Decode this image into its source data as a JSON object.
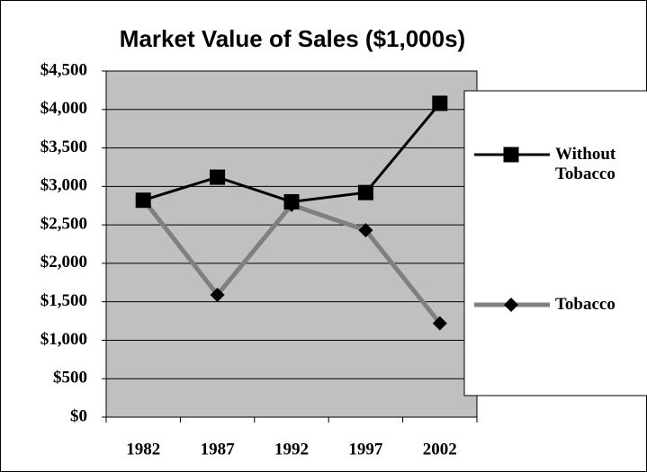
{
  "chart_data": {
    "type": "line",
    "title": "Market Value of Sales ($1,000s)",
    "categories": [
      "1982",
      "1987",
      "1992",
      "1997",
      "2002"
    ],
    "series": [
      {
        "name": "Without Tobacco",
        "color": "#000000",
        "marker": "square",
        "marker_color": "#000000",
        "values": [
          2820,
          3120,
          2800,
          2920,
          4080
        ]
      },
      {
        "name": "Tobacco",
        "color": "#808080",
        "marker": "diamond",
        "marker_color": "#000000",
        "values": [
          2830,
          1590,
          2760,
          2430,
          1220
        ]
      }
    ],
    "ylim": [
      0,
      4500
    ],
    "yticks": [
      {
        "value": 0,
        "label": "$0"
      },
      {
        "value": 500,
        "label": "$500"
      },
      {
        "value": 1000,
        "label": "$1,000"
      },
      {
        "value": 1500,
        "label": "$1,500"
      },
      {
        "value": 2000,
        "label": "$2,000"
      },
      {
        "value": 2500,
        "label": "$2,500"
      },
      {
        "value": 3000,
        "label": "$3,000"
      },
      {
        "value": 3500,
        "label": "$3,500"
      },
      {
        "value": 4000,
        "label": "$4,000"
      },
      {
        "value": 4500,
        "label": "$4,500"
      }
    ],
    "grid": true,
    "legend": "right",
    "plot_background": "#c0c0c0"
  }
}
